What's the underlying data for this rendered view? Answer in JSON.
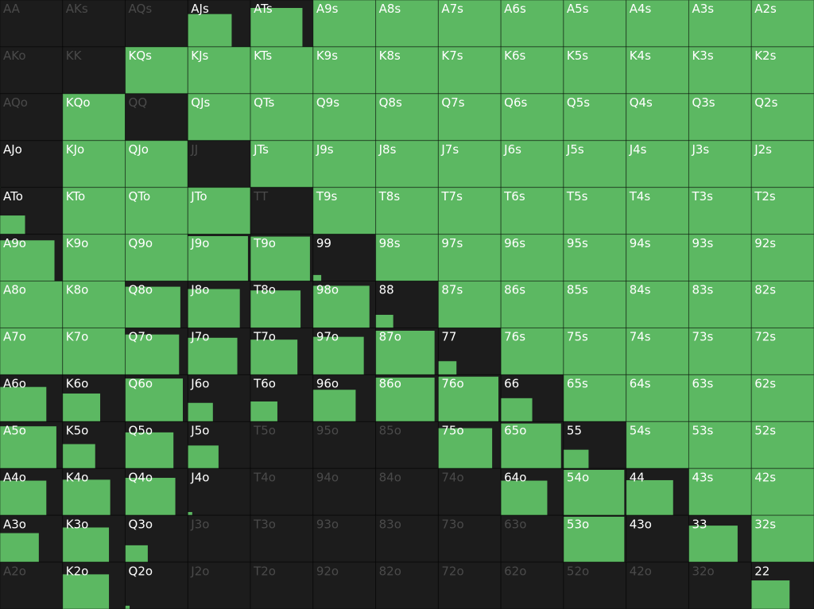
{
  "grid": {
    "rows": [
      {
        "labels": [
          "AA",
          "AKs",
          "AQs",
          "AJs",
          "ATs",
          "A9s",
          "A8s",
          "A7s",
          "A6s",
          "A5s",
          "A4s",
          "A3s",
          "A2s"
        ],
        "values": [
          0,
          0,
          0,
          0.7,
          0.83,
          1,
          1,
          1,
          1,
          1,
          1,
          1,
          1
        ]
      },
      {
        "labels": [
          "AKo",
          "KK",
          "KQs",
          "KJs",
          "KTs",
          "K9s",
          "K8s",
          "K7s",
          "K6s",
          "K5s",
          "K4s",
          "K3s",
          "K2s"
        ],
        "values": [
          0,
          0,
          1,
          1,
          1,
          1,
          1,
          1,
          1,
          1,
          1,
          1,
          1
        ]
      },
      {
        "labels": [
          "AQo",
          "KQo",
          "QQ",
          "QJs",
          "QTs",
          "Q9s",
          "Q8s",
          "Q7s",
          "Q6s",
          "Q5s",
          "Q4s",
          "Q3s",
          "Q2s"
        ],
        "values": [
          0,
          1,
          0,
          1,
          1,
          1,
          1,
          1,
          1,
          1,
          1,
          1,
          1
        ]
      },
      {
        "labels": [
          "AJo",
          "KJo",
          "QJo",
          "JJ",
          "JTs",
          "J9s",
          "J8s",
          "J7s",
          "J6s",
          "J5s",
          "J4s",
          "J3s",
          "J2s"
        ],
        "values": [
          0.01,
          1,
          1,
          0,
          1,
          1,
          1,
          1,
          1,
          1,
          1,
          1,
          1
        ]
      },
      {
        "labels": [
          "ATo",
          "KTo",
          "QTo",
          "JTo",
          "TT",
          "T9s",
          "T8s",
          "T7s",
          "T6s",
          "T5s",
          "T4s",
          "T3s",
          "T2s"
        ],
        "values": [
          0.4,
          1,
          1,
          1,
          0,
          1,
          1,
          1,
          1,
          1,
          1,
          1,
          1
        ]
      },
      {
        "labels": [
          "A9o",
          "K9o",
          "Q9o",
          "J9o",
          "T9o",
          "99",
          "98s",
          "97s",
          "96s",
          "95s",
          "94s",
          "93s",
          "92s"
        ],
        "values": [
          0.87,
          1,
          1,
          0.96,
          0.95,
          0.13,
          1,
          1,
          1,
          1,
          1,
          1,
          1
        ]
      },
      {
        "labels": [
          "A8o",
          "K8o",
          "Q8o",
          "J8o",
          "T8o",
          "98o",
          "88",
          "87s",
          "86s",
          "85s",
          "84s",
          "83s",
          "82s"
        ],
        "values": [
          1,
          1,
          0.88,
          0.83,
          0.8,
          0.9,
          0.28,
          1,
          1,
          1,
          1,
          1,
          1
        ]
      },
      {
        "labels": [
          "A7o",
          "K7o",
          "Q7o",
          "J7o",
          "T7o",
          "97o",
          "87o",
          "77",
          "76s",
          "75s",
          "74s",
          "73s",
          "72s"
        ],
        "values": [
          1,
          1,
          0.86,
          0.79,
          0.75,
          0.81,
          0.94,
          0.29,
          1,
          1,
          1,
          1,
          1
        ]
      },
      {
        "labels": [
          "A6o",
          "K6o",
          "Q6o",
          "J6o",
          "T6o",
          "96o",
          "86o",
          "76o",
          "66",
          "65s",
          "64s",
          "63s",
          "62s"
        ],
        "values": [
          0.74,
          0.6,
          0.92,
          0.4,
          0.43,
          0.68,
          0.94,
          0.96,
          0.5,
          1,
          1,
          1,
          1
        ]
      },
      {
        "labels": [
          "A5o",
          "K5o",
          "Q5o",
          "J5o",
          "T5o",
          "95o",
          "85o",
          "75o",
          "65o",
          "55",
          "54s",
          "53s",
          "52s"
        ],
        "values": [
          0.9,
          0.52,
          0.77,
          0.49,
          0,
          0,
          0,
          0.86,
          0.96,
          0.4,
          1,
          1,
          1
        ]
      },
      {
        "labels": [
          "A4o",
          "K4o",
          "Q4o",
          "J4o",
          "T4o",
          "94o",
          "84o",
          "74o",
          "64o",
          "54o",
          "44",
          "43s",
          "42s"
        ],
        "values": [
          0.74,
          0.76,
          0.8,
          0.07,
          0,
          0,
          0,
          0,
          0.74,
          0.97,
          0.75,
          1,
          1
        ]
      },
      {
        "labels": [
          "A3o",
          "K3o",
          "Q3o",
          "J3o",
          "T3o",
          "93o",
          "83o",
          "73o",
          "63o",
          "53o",
          "43o",
          "33",
          "32s"
        ],
        "values": [
          0.62,
          0.74,
          0.36,
          0,
          0,
          0,
          0,
          0,
          0,
          0.97,
          0.01,
          0.78,
          1
        ]
      },
      {
        "labels": [
          "A2o",
          "K2o",
          "Q2o",
          "J2o",
          "T2o",
          "92o",
          "82o",
          "72o",
          "62o",
          "52o",
          "42o",
          "32o",
          "22"
        ],
        "values": [
          0,
          0.74,
          0.07,
          0,
          0,
          0,
          0,
          0,
          0,
          0,
          0,
          0,
          0.61
        ]
      }
    ]
  }
}
